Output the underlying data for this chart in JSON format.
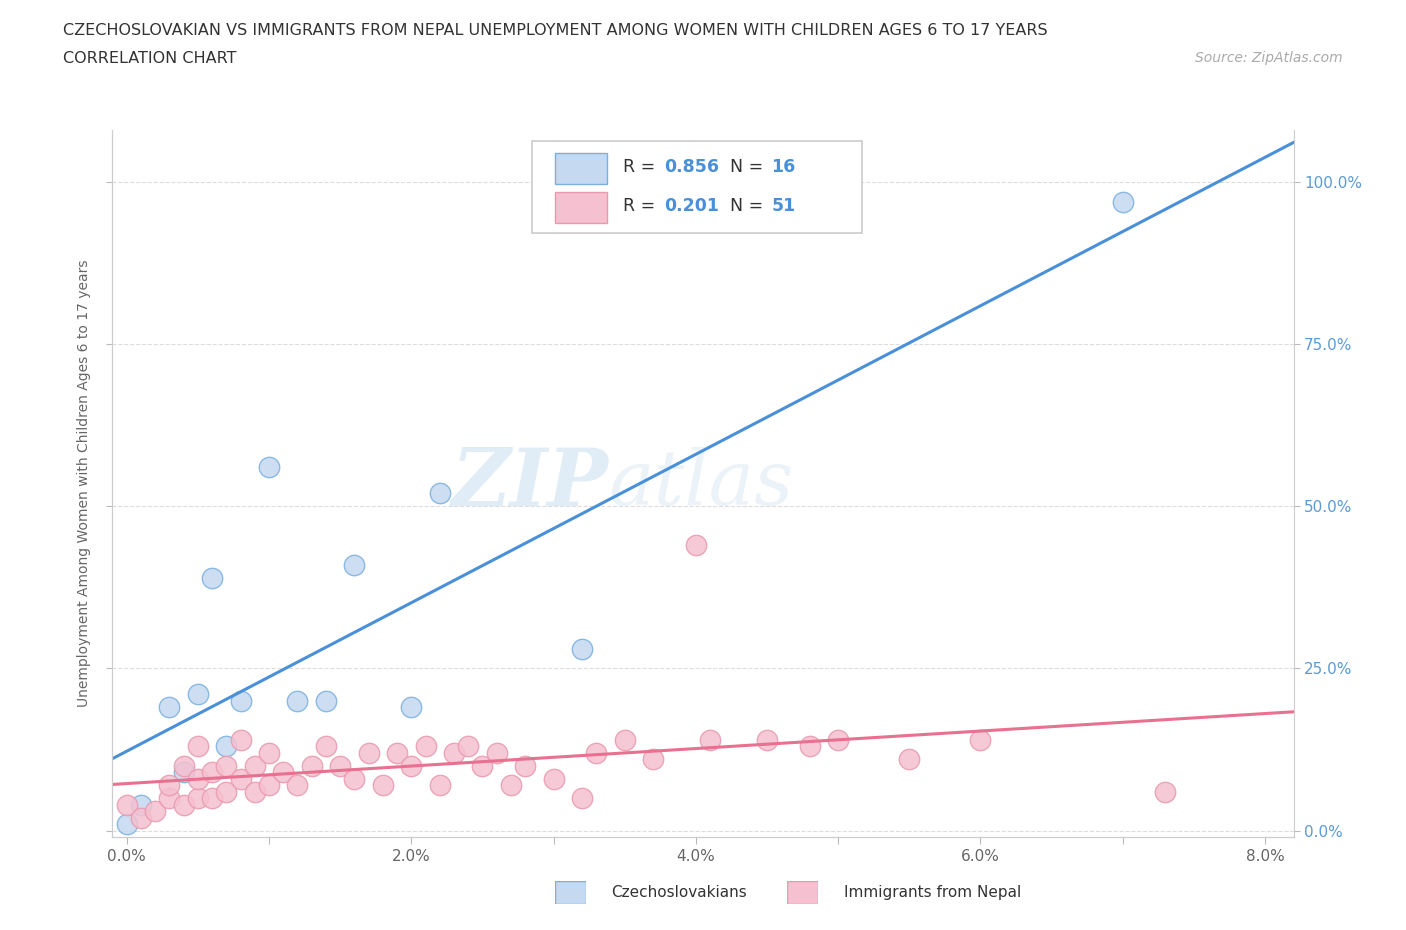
{
  "title_line1": "CZECHOSLOVAKIAN VS IMMIGRANTS FROM NEPAL UNEMPLOYMENT AMONG WOMEN WITH CHILDREN AGES 6 TO 17 YEARS",
  "title_line2": "CORRELATION CHART",
  "source_text": "Source: ZipAtlas.com",
  "xlim": [
    -0.001,
    0.082
  ],
  "ylim": [
    -0.01,
    1.08
  ],
  "ylabel": "Unemployment Among Women with Children Ages 6 to 17 years",
  "watermark_zip": "ZIP",
  "watermark_atlas": "atlas",
  "legend_entry1_r": "0.856",
  "legend_entry1_n": "16",
  "legend_entry2_r": "0.201",
  "legend_entry2_n": "51",
  "legend_label1": "Czechoslovakians",
  "legend_label2": "Immigrants from Nepal",
  "color_blue_fill": "#c5d9f0",
  "color_pink_fill": "#f5c0cf",
  "color_blue_edge": "#7ab0e0",
  "color_pink_edge": "#e89ab0",
  "color_blue_line": "#4a90d9",
  "color_pink_line": "#e87090",
  "color_right_tick": "#5b9bd5",
  "dot_size": 120,
  "blue_dots_x": [
    0.0,
    0.001,
    0.003,
    0.004,
    0.005,
    0.006,
    0.007,
    0.008,
    0.01,
    0.012,
    0.014,
    0.016,
    0.02,
    0.022,
    0.032,
    0.07
  ],
  "blue_dots_y": [
    0.01,
    0.04,
    0.19,
    0.09,
    0.21,
    0.39,
    0.13,
    0.2,
    0.56,
    0.2,
    0.2,
    0.41,
    0.19,
    0.52,
    0.28,
    0.97
  ],
  "pink_dots_x": [
    0.0,
    0.001,
    0.002,
    0.003,
    0.003,
    0.004,
    0.004,
    0.005,
    0.005,
    0.005,
    0.006,
    0.006,
    0.007,
    0.007,
    0.008,
    0.008,
    0.009,
    0.009,
    0.01,
    0.01,
    0.011,
    0.012,
    0.013,
    0.014,
    0.015,
    0.016,
    0.017,
    0.018,
    0.019,
    0.02,
    0.021,
    0.022,
    0.023,
    0.024,
    0.025,
    0.026,
    0.027,
    0.028,
    0.03,
    0.032,
    0.033,
    0.035,
    0.037,
    0.04,
    0.041,
    0.045,
    0.048,
    0.05,
    0.055,
    0.06,
    0.073
  ],
  "pink_dots_y": [
    0.04,
    0.02,
    0.03,
    0.05,
    0.07,
    0.04,
    0.1,
    0.05,
    0.08,
    0.13,
    0.05,
    0.09,
    0.06,
    0.1,
    0.08,
    0.14,
    0.06,
    0.1,
    0.07,
    0.12,
    0.09,
    0.07,
    0.1,
    0.13,
    0.1,
    0.08,
    0.12,
    0.07,
    0.12,
    0.1,
    0.13,
    0.07,
    0.12,
    0.13,
    0.1,
    0.12,
    0.07,
    0.1,
    0.08,
    0.05,
    0.12,
    0.14,
    0.11,
    0.44,
    0.14,
    0.14,
    0.13,
    0.14,
    0.11,
    0.14,
    0.06
  ],
  "ytick_positions": [
    0.0,
    0.25,
    0.5,
    0.75,
    1.0
  ],
  "ytick_labels_right": [
    "0.0%",
    "25.0%",
    "50.0%",
    "75.0%",
    "100.0%"
  ],
  "xtick_positions": [
    0.0,
    0.01,
    0.02,
    0.03,
    0.04,
    0.05,
    0.06,
    0.07,
    0.08
  ],
  "xtick_labels": [
    "0.0%",
    "",
    "2.0%",
    "",
    "4.0%",
    "",
    "6.0%",
    "",
    "8.0%"
  ],
  "background_color": "#ffffff",
  "grid_color": "#dddddd"
}
